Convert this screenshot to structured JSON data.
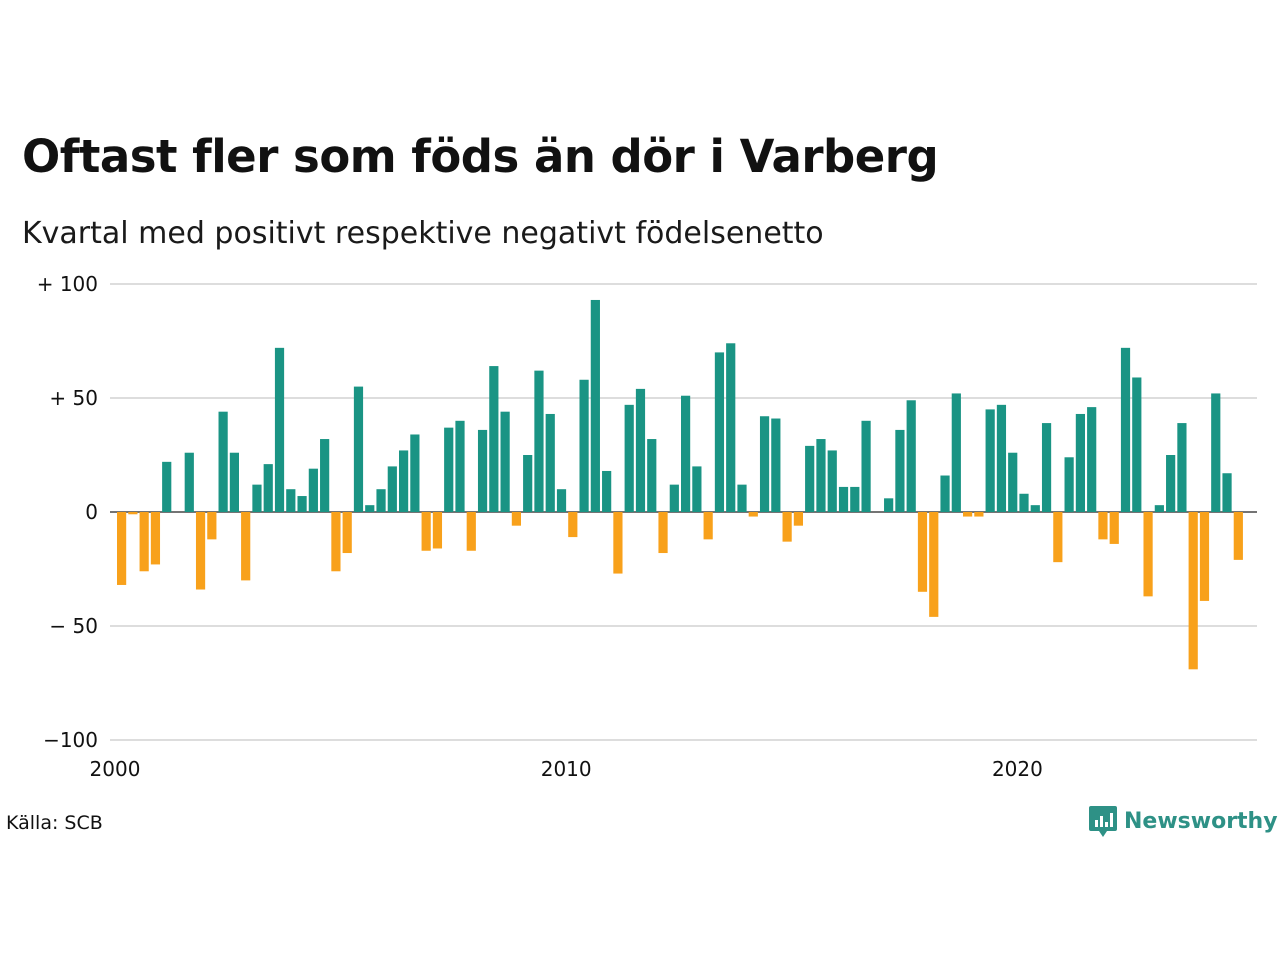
{
  "header": {
    "title": "Oftast fler som föds än dör i Varberg",
    "subtitle": "Kvartal med positivt respektive negativt födelsenetto"
  },
  "footer": {
    "source": "Källa: SCB",
    "brand": "Newsworthy",
    "brand_icon": "bar-chart-logo-icon"
  },
  "colors": {
    "positive": "#1a9484",
    "negative": "#f8a11b",
    "grid": "#dddddd",
    "brand": "#2e9186"
  },
  "chart_data": {
    "type": "bar",
    "title": "Oftast fler som föds än dör i Varberg",
    "subtitle": "Kvartal med positivt respektive negativt födelsenetto",
    "x_start": "2000-Q1",
    "frequency": "quarter",
    "ylim": [
      -100,
      100
    ],
    "y_ticks": [
      {
        "value": 100,
        "label": "+ 100"
      },
      {
        "value": 50,
        "label": "+  50"
      },
      {
        "value": 0,
        "label": "0"
      },
      {
        "value": -50,
        "label": "− 50"
      },
      {
        "value": -100,
        "label": "−100"
      }
    ],
    "x_ticks": [
      {
        "year": 2000,
        "label": "2000"
      },
      {
        "year": 2010,
        "label": "2010"
      },
      {
        "year": 2020,
        "label": "2020"
      }
    ],
    "grid": true,
    "values": [
      -32,
      -1,
      -26,
      -23,
      22,
      0,
      26,
      -34,
      -12,
      44,
      26,
      -30,
      12,
      21,
      72,
      10,
      7,
      19,
      32,
      -26,
      -18,
      55,
      3,
      10,
      20,
      27,
      34,
      -17,
      -16,
      37,
      40,
      -17,
      36,
      64,
      44,
      -6,
      25,
      62,
      43,
      10,
      -11,
      58,
      93,
      18,
      -27,
      47,
      54,
      32,
      -18,
      12,
      51,
      20,
      -12,
      70,
      74,
      12,
      -2,
      42,
      41,
      -13,
      -6,
      29,
      32,
      27,
      11,
      11,
      40,
      0,
      6,
      36,
      49,
      -35,
      -46,
      16,
      52,
      -2,
      -2,
      45,
      47,
      26,
      8,
      3,
      39,
      -22,
      24,
      43,
      46,
      -12,
      -14,
      72,
      59,
      -37,
      3,
      25,
      39,
      -69,
      -39,
      52,
      17,
      -21
    ]
  }
}
